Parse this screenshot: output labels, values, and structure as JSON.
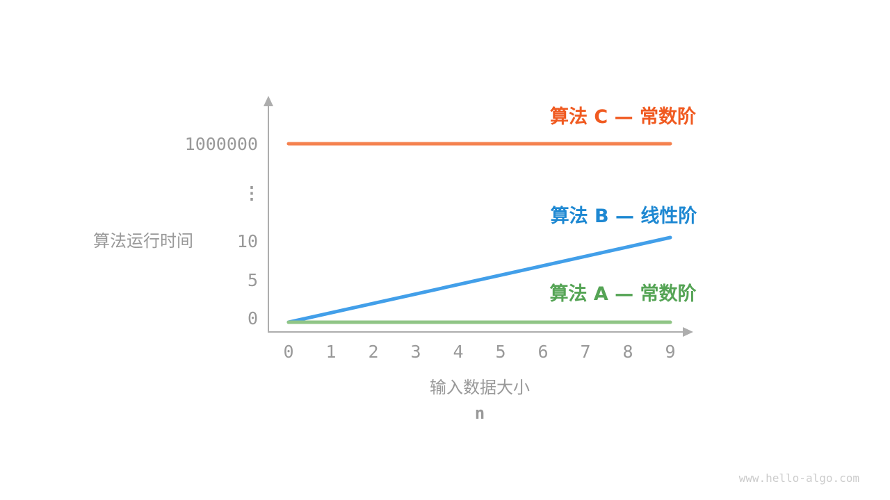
{
  "page": {
    "background": "#FFFFFF",
    "watermark": "www.hello-algo.com",
    "watermark_color": "#CCCCCC"
  },
  "chart_data": {
    "type": "line",
    "title": "",
    "xlabel": "输入数据大小",
    "xlabel_sub": "n",
    "ylabel": "算法运行时间",
    "x_range": [
      0,
      9
    ],
    "x_ticks": [
      "0",
      "1",
      "2",
      "3",
      "4",
      "5",
      "6",
      "7",
      "8",
      "9"
    ],
    "y_ticks_top_to_bottom": [
      "1000000",
      "⋮",
      "10",
      "5",
      "0"
    ],
    "y_axis_note": "broken axis: 0, 5, 10, then ellipsis, then 1000000",
    "grid": false,
    "legend_position": "right, beside each line",
    "axis_color": "#ADADAD",
    "tick_color": "#999999",
    "series": [
      {
        "name": "算法 C — 常数阶",
        "color_line": "#F5824F",
        "color_label": "#F05A20",
        "x": [
          0,
          9
        ],
        "y": [
          1000000,
          1000000
        ]
      },
      {
        "name": "算法 B — 线性阶",
        "color_line": "#429FE9",
        "color_label": "#1E88D2",
        "x": [
          0,
          9
        ],
        "y": [
          0,
          10
        ]
      },
      {
        "name": "算法 A — 常数阶",
        "color_line": "#90C586",
        "color_label": "#55A455",
        "x": [
          0,
          9
        ],
        "y": [
          0,
          0
        ]
      }
    ]
  }
}
